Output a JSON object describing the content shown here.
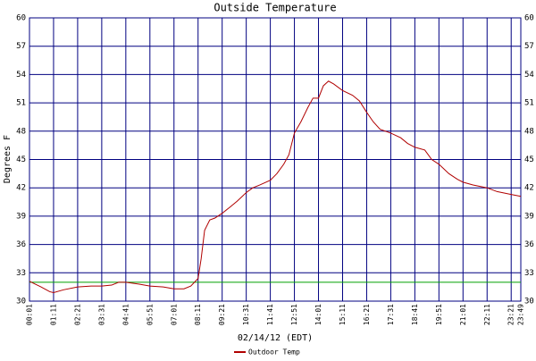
{
  "chart_data": {
    "type": "line",
    "title": "Outside Temperature",
    "y_label": "Degrees F",
    "x_label": "02/14/12 (EDT)",
    "x": [
      "00:01",
      "00:35",
      "01:00",
      "01:11",
      "01:40",
      "02:21",
      "03:00",
      "03:31",
      "04:00",
      "04:20",
      "04:41",
      "05:20",
      "05:51",
      "06:30",
      "07:01",
      "07:30",
      "07:50",
      "08:11",
      "08:20",
      "08:30",
      "08:45",
      "09:00",
      "09:21",
      "09:45",
      "10:05",
      "10:31",
      "10:50",
      "11:10",
      "11:41",
      "12:00",
      "12:20",
      "12:35",
      "12:51",
      "13:10",
      "13:30",
      "13:45",
      "14:01",
      "14:15",
      "14:30",
      "14:45",
      "15:11",
      "15:40",
      "16:00",
      "16:21",
      "16:40",
      "17:00",
      "17:31",
      "18:00",
      "18:20",
      "18:41",
      "19:10",
      "19:30",
      "19:51",
      "20:20",
      "20:45",
      "21:01",
      "21:30",
      "22:11",
      "22:40",
      "23:21",
      "23:49"
    ],
    "series": [
      {
        "name": "Outdoor Temp",
        "color": "#b00000",
        "values": [
          32.1,
          31.5,
          31.0,
          30.9,
          31.2,
          31.5,
          31.6,
          31.6,
          31.7,
          32.0,
          32.0,
          31.8,
          31.6,
          31.5,
          31.3,
          31.3,
          31.6,
          32.4,
          34.5,
          37.5,
          38.6,
          38.8,
          39.3,
          40.0,
          40.6,
          41.5,
          42.0,
          42.3,
          42.8,
          43.5,
          44.5,
          45.5,
          47.8,
          49.0,
          50.5,
          51.5,
          51.5,
          52.8,
          53.3,
          53.0,
          52.3,
          51.8,
          51.2,
          50.0,
          49.0,
          48.2,
          47.8,
          47.3,
          46.7,
          46.3,
          46.0,
          45.0,
          44.5,
          43.5,
          42.9,
          42.6,
          42.3,
          42.0,
          41.6,
          41.3,
          41.1
        ]
      }
    ],
    "reference_line": {
      "value": 32,
      "color": "#00a000"
    },
    "xlim": [
      "00:01",
      "23:49"
    ],
    "xticks": [
      "00:01",
      "01:11",
      "02:21",
      "03:31",
      "04:41",
      "05:51",
      "07:01",
      "08:11",
      "09:21",
      "10:31",
      "11:41",
      "12:51",
      "14:01",
      "15:11",
      "16:21",
      "17:31",
      "18:41",
      "19:51",
      "21:01",
      "22:11",
      "23:21",
      "23:49"
    ],
    "ylim": [
      30,
      60
    ],
    "yticks": [
      30,
      33,
      36,
      39,
      42,
      45,
      48,
      51,
      54,
      57,
      60
    ],
    "grid": true,
    "grid_color": "#000080",
    "legend": "bottom"
  }
}
